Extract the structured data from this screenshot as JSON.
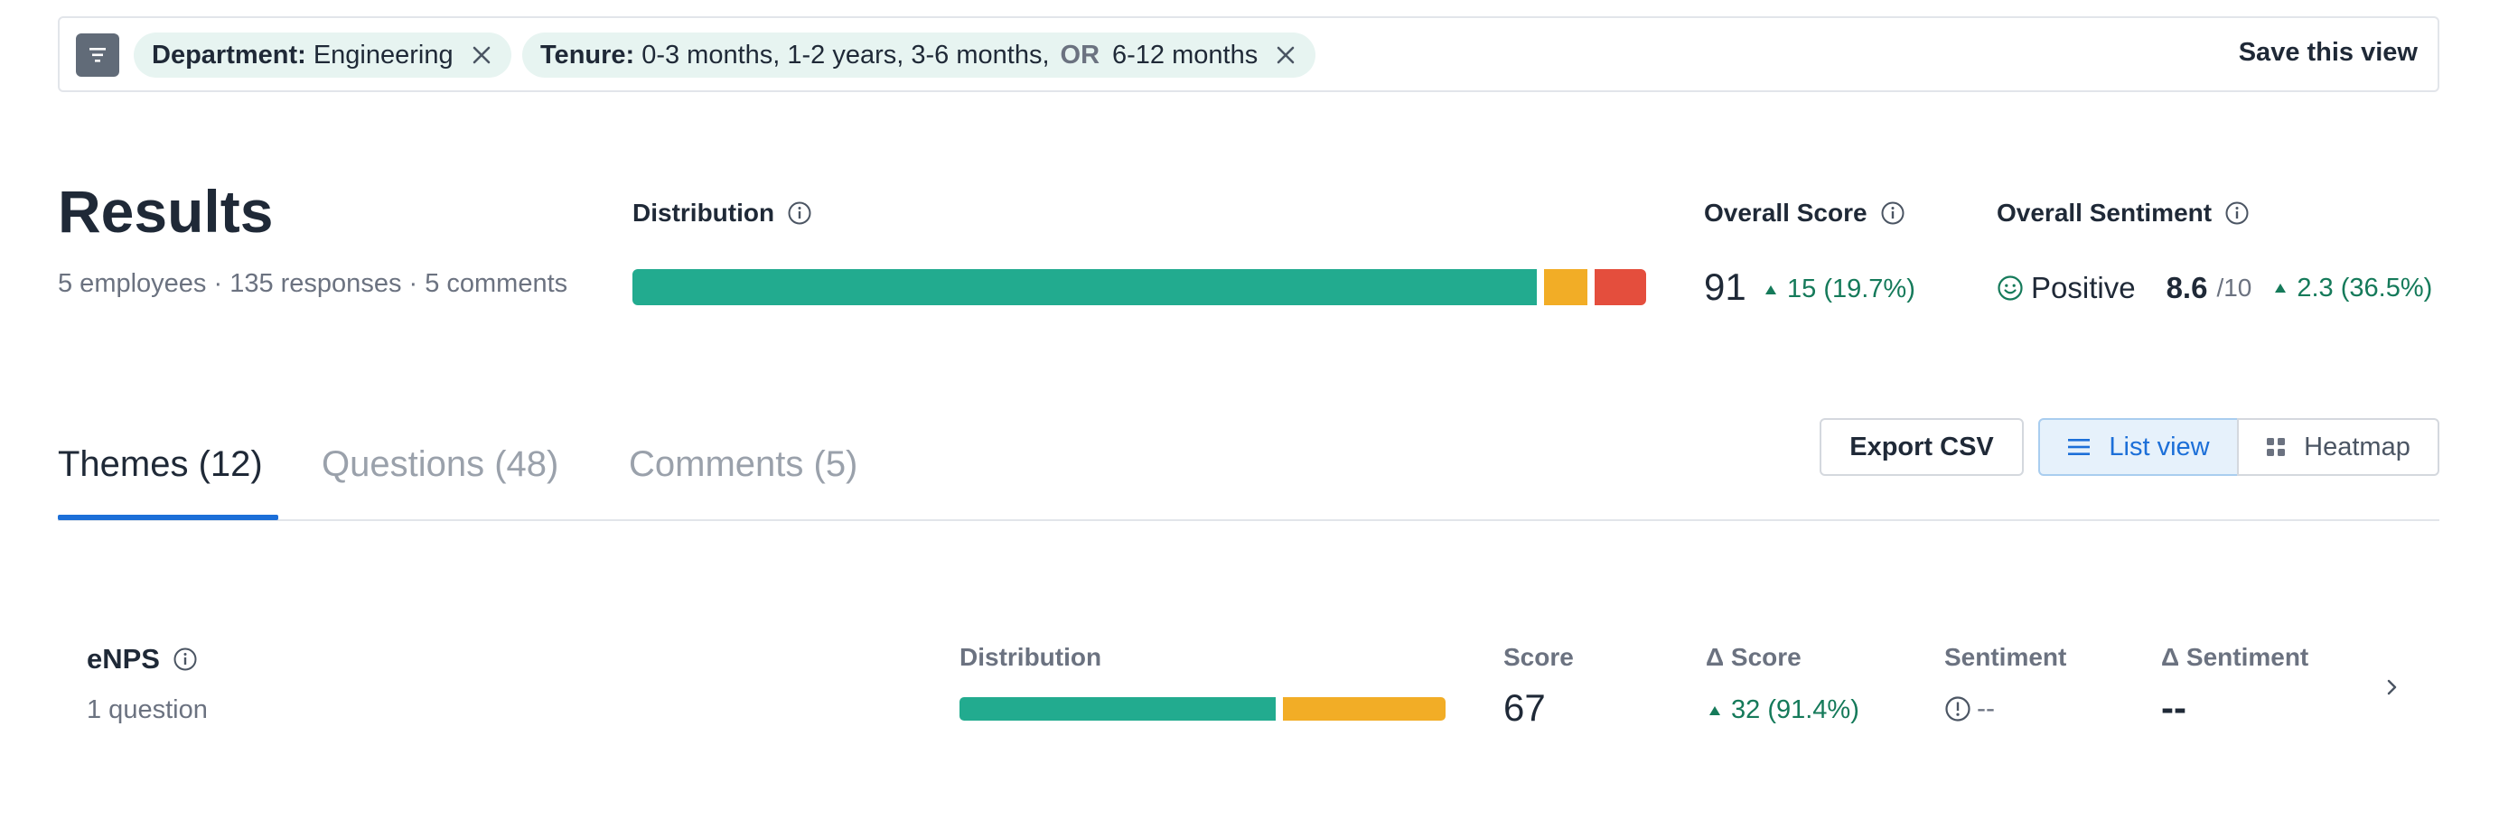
{
  "filters": {
    "chips": [
      {
        "key": "Department:",
        "value": "Engineering"
      },
      {
        "key": "Tenure:",
        "value": "0-3 months, 1-2 years, 3-6 months,",
        "or_label": "OR",
        "value2": "6-12 months"
      }
    ],
    "save_label": "Save this view"
  },
  "results": {
    "title": "Results",
    "meta": "5 employees · 135 responses · 5 comments",
    "distribution": {
      "label": "Distribution",
      "segments": [
        {
          "name": "positive",
          "fraction": 0.905,
          "color": "#22ab8f"
        },
        {
          "name": "neutral",
          "fraction": 0.043,
          "color": "#f2ad26"
        },
        {
          "name": "negative",
          "fraction": 0.052,
          "color": "#e44e3d"
        }
      ]
    },
    "overall_score": {
      "label": "Overall Score",
      "value": "91",
      "delta": "15 (19.7%)"
    },
    "overall_sentiment": {
      "label": "Overall Sentiment",
      "sentiment": "Positive",
      "value": "8.6",
      "unit": "/10",
      "delta": "2.3 (36.5%)"
    }
  },
  "tabs": [
    {
      "label": "Themes (12)",
      "active": true
    },
    {
      "label": "Questions (48)",
      "active": false
    },
    {
      "label": "Comments (5)",
      "active": false
    }
  ],
  "actions": {
    "export_label": "Export CSV",
    "list_label": "List view",
    "heatmap_label": "Heatmap"
  },
  "themes": [
    {
      "title": "eNPS",
      "subtitle": "1 question",
      "headers": {
        "distribution": "Distribution",
        "score": "Score",
        "delta_score": "Δ Score",
        "sentiment": "Sentiment",
        "delta_sentiment": "Δ Sentiment"
      },
      "distribution": [
        {
          "name": "positive",
          "fraction": 0.66,
          "color": "#22ab8f"
        },
        {
          "name": "neutral",
          "fraction": 0.34,
          "color": "#f2ad26"
        }
      ],
      "score": "67",
      "delta_score": "32 (91.4%)",
      "sentiment": "--",
      "delta_sentiment": "--"
    }
  ],
  "colors": {
    "accent": "#1c6fd8",
    "positive": "#157a5a",
    "chip_bg": "#e7f4f1"
  }
}
